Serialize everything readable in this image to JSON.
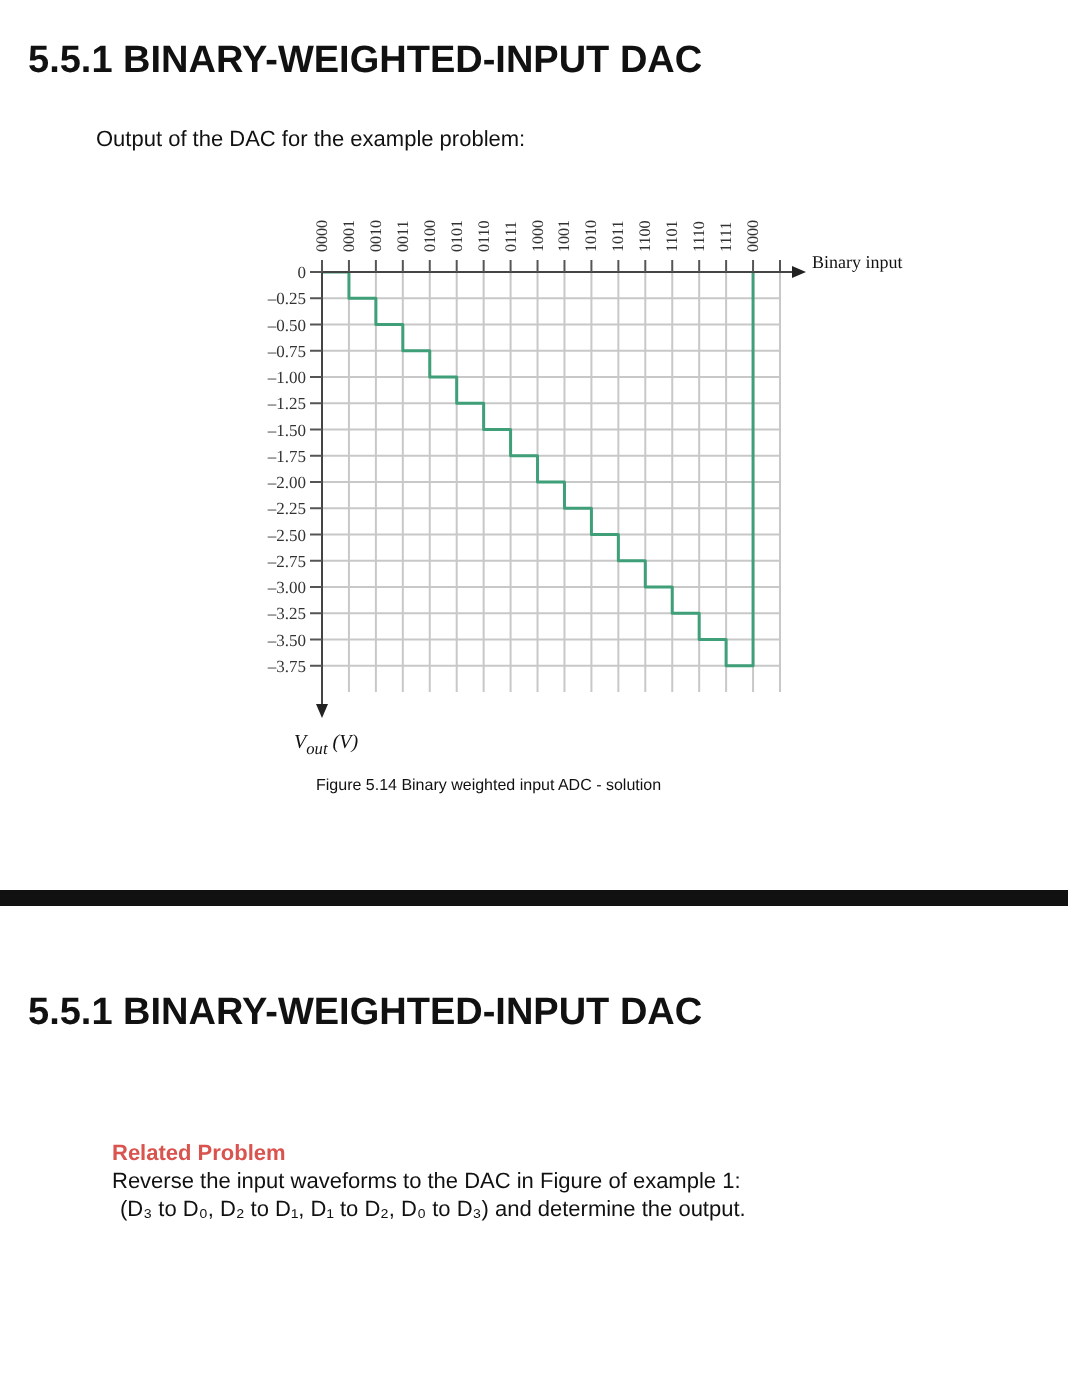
{
  "chart_data": {
    "type": "step",
    "title": "5.5.1 BINARY-WEIGHTED-INPUT DAC",
    "subtitle": "Output of the DAC for the example problem:",
    "xlabel": "Binary input",
    "ylabel": "V$_{out}$ (V)",
    "categories": [
      "0000",
      "0001",
      "0010",
      "0011",
      "0100",
      "0101",
      "0110",
      "0111",
      "1000",
      "1001",
      "1010",
      "1011",
      "1100",
      "1101",
      "1110",
      "1111",
      "0000"
    ],
    "series": [
      {
        "color": "#3f9f78",
        "values": [
          0,
          -0.25,
          -0.5,
          -0.75,
          -1,
          -1.25,
          -1.5,
          -1.75,
          -2,
          -2.25,
          -2.5,
          -2.75,
          -3,
          -3.25,
          -3.5,
          -3.75,
          0
        ]
      }
    ],
    "ylim": [
      -4,
      0
    ],
    "yticks": [
      0,
      {
        "value": -0.25,
        "label": "–0.25"
      },
      {
        "value": -0.5,
        "label": "–0.50"
      },
      {
        "value": -0.75,
        "label": "–0.75"
      },
      {
        "value": -1,
        "label": "–1.00"
      },
      {
        "value": -1.25,
        "label": "–1.25"
      },
      {
        "value": -1.5,
        "label": "–1.50"
      },
      {
        "value": -1.75,
        "label": "–1.75"
      },
      {
        "value": -2,
        "label": "–2.00"
      },
      {
        "value": -2.25,
        "label": "–2.25"
      },
      {
        "value": -2.5,
        "label": "–2.50"
      },
      {
        "value": -2.75,
        "label": "–2.75"
      },
      {
        "value": -3,
        "label": "–3.00"
      },
      {
        "value": -3.25,
        "label": "–3.25"
      },
      {
        "value": -3.5,
        "label": "–3.50"
      },
      {
        "value": -3.75,
        "label": "–3.75"
      }
    ],
    "grid": true,
    "marker": "none",
    "legend": false,
    "annotations": [
      "Figure 5.14 Binary weighted input ADC - solution",
      "5.5.1 BINARY-WEIGHTED-INPUT DAC",
      "Related Problem",
      "Reverse the input waveforms to the DAC in Figure of example 1:",
      "(D₃ to D₀, D₂ to D₁, D₁ to D₂, D₀ to D₃) and determine the output."
    ]
  }
}
